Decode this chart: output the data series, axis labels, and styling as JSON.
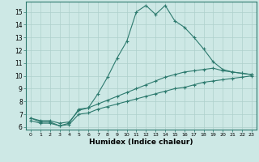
{
  "xlabel": "Humidex (Indice chaleur)",
  "background_color": "#cde8e5",
  "line_color": "#2d7a6e",
  "grid_color": "#aed0cc",
  "xlim": [
    -0.5,
    23.5
  ],
  "ylim": [
    5.8,
    15.8
  ],
  "yticks": [
    6,
    7,
    8,
    9,
    10,
    11,
    12,
    13,
    14,
    15
  ],
  "xticks": [
    0,
    1,
    2,
    3,
    4,
    5,
    6,
    7,
    8,
    9,
    10,
    11,
    12,
    13,
    14,
    15,
    16,
    17,
    18,
    19,
    20,
    21,
    22,
    23
  ],
  "series": [
    {
      "x": [
        0,
        1,
        2,
        3,
        4,
        5,
        6,
        7,
        8,
        9,
        10,
        11,
        12,
        13,
        14,
        15,
        16,
        17,
        18,
        19,
        20,
        21,
        22,
        23
      ],
      "y": [
        6.7,
        6.4,
        6.4,
        6.1,
        6.3,
        7.4,
        7.5,
        8.6,
        9.9,
        11.4,
        12.7,
        15.0,
        15.5,
        14.8,
        15.5,
        14.3,
        13.8,
        13.0,
        12.1,
        11.1,
        10.5,
        10.3,
        10.2,
        10.1
      ]
    },
    {
      "x": [
        0,
        1,
        2,
        3,
        4,
        5,
        6,
        7,
        8,
        9,
        10,
        11,
        12,
        13,
        14,
        15,
        16,
        17,
        18,
        19,
        20,
        21,
        22,
        23
      ],
      "y": [
        6.7,
        6.5,
        6.5,
        6.3,
        6.4,
        7.3,
        7.5,
        7.8,
        8.1,
        8.4,
        8.7,
        9.0,
        9.3,
        9.6,
        9.9,
        10.1,
        10.3,
        10.4,
        10.5,
        10.6,
        10.4,
        10.3,
        10.2,
        10.1
      ]
    },
    {
      "x": [
        0,
        1,
        2,
        3,
        4,
        5,
        6,
        7,
        8,
        9,
        10,
        11,
        12,
        13,
        14,
        15,
        16,
        17,
        18,
        19,
        20,
        21,
        22,
        23
      ],
      "y": [
        6.5,
        6.3,
        6.3,
        6.1,
        6.2,
        7.0,
        7.1,
        7.4,
        7.6,
        7.8,
        8.0,
        8.2,
        8.4,
        8.6,
        8.8,
        9.0,
        9.1,
        9.3,
        9.5,
        9.6,
        9.7,
        9.8,
        9.9,
        10.0
      ]
    }
  ]
}
